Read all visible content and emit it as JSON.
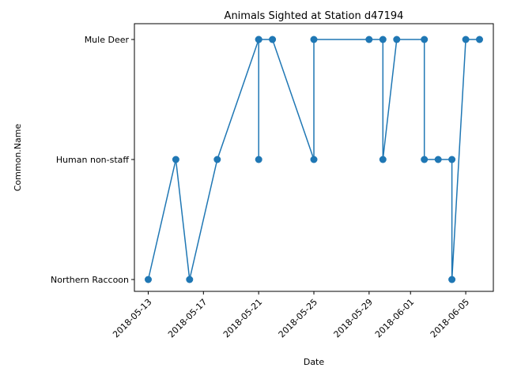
{
  "chart_data": {
    "type": "line",
    "title": "Animals Sighted at Station d47194",
    "xlabel": "Date",
    "ylabel": "Common.Name",
    "categories": [
      "Northern Raccoon",
      "Human non-staff",
      "Mule Deer"
    ],
    "x_ticks": [
      "2018-05-13",
      "2018-05-17",
      "2018-05-21",
      "2018-05-25",
      "2018-05-29",
      "2018-06-01",
      "2018-06-05"
    ],
    "xlim": [
      "2018-05-12",
      "2018-06-07"
    ],
    "series": [
      {
        "color": "#1f77b4",
        "x": [
          "2018-05-13",
          "2018-05-15",
          "2018-05-16",
          "2018-05-18",
          "2018-05-21",
          "2018-05-21",
          "2018-05-21",
          "2018-05-22",
          "2018-05-25",
          "2018-05-25",
          "2018-05-29",
          "2018-05-30",
          "2018-05-30",
          "2018-05-31",
          "2018-06-02",
          "2018-06-02",
          "2018-06-03",
          "2018-06-04",
          "2018-06-04",
          "2018-06-05",
          "2018-06-06"
        ],
        "y": [
          "Northern Raccoon",
          "Human non-staff",
          "Northern Raccoon",
          "Human non-staff",
          "Mule Deer",
          "Human non-staff",
          "Mule Deer",
          "Mule Deer",
          "Human non-staff",
          "Mule Deer",
          "Mule Deer",
          "Mule Deer",
          "Human non-staff",
          "Mule Deer",
          "Mule Deer",
          "Human non-staff",
          "Human non-staff",
          "Human non-staff",
          "Northern Raccoon",
          "Mule Deer",
          "Mule Deer"
        ]
      }
    ],
    "grid": false,
    "legend": "none"
  }
}
